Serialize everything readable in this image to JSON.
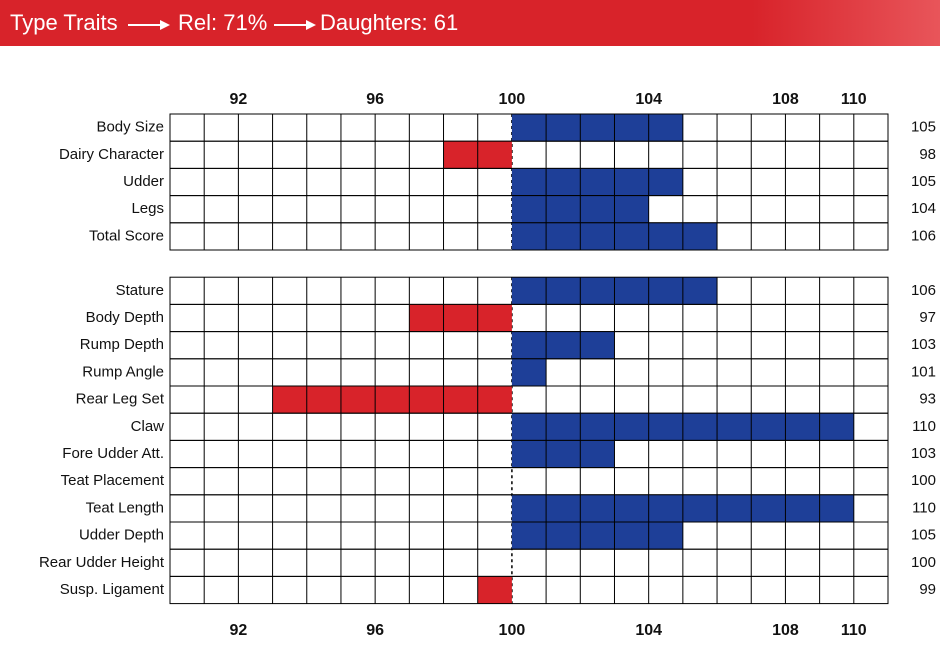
{
  "header": {
    "title": "Type Traits",
    "reliability": "Rel: 71%",
    "daughters": "Daughters: 61"
  },
  "chart_data": {
    "type": "bar",
    "orientation": "horizontal",
    "categories": [
      "Body Size",
      "Dairy Character",
      "Udder",
      "Legs",
      "Total Score",
      null,
      "Stature",
      "Body Depth",
      "Rump Depth",
      "Rump Angle",
      "Rear Leg Set",
      "Claw",
      "Fore Udder Att.",
      "Teat Placement",
      "Teat Length",
      "Udder Depth",
      "Rear Udder Height",
      "Susp. Ligament"
    ],
    "values": [
      105,
      98,
      105,
      104,
      106,
      null,
      106,
      97,
      103,
      101,
      93,
      110,
      103,
      100,
      110,
      105,
      100,
      99
    ],
    "xlim": [
      90,
      111
    ],
    "xticks": [
      92,
      96,
      100,
      104,
      108,
      110
    ],
    "baseline": 100,
    "positive_color": "#1e3f98",
    "negative_color": "#d8232a",
    "grid": true
  }
}
